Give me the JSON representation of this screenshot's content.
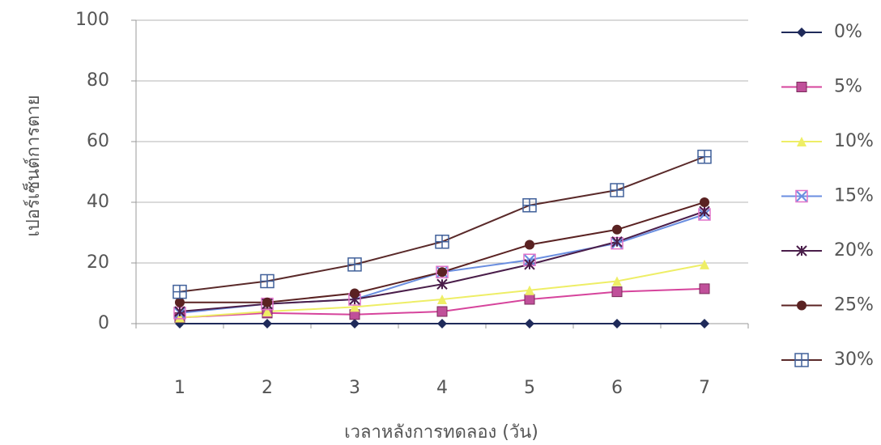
{
  "chart_data": {
    "type": "line",
    "x_label": "เวลาหลังการทดลอง (วัน)",
    "y_label": "เปอร์เซ็นต์การตาย",
    "categories": [
      "1",
      "2",
      "3",
      "4",
      "5",
      "6",
      "7"
    ],
    "ylim": [
      0,
      100
    ],
    "yticks": [
      0,
      20,
      40,
      60,
      80,
      100
    ],
    "grid": true,
    "legend": "right",
    "series": [
      {
        "name": "0%",
        "color": "#1f2a5a",
        "marker": "diamond",
        "marker_color": "#1f2a5a",
        "values": [
          0,
          0,
          0,
          0,
          0,
          0,
          0
        ]
      },
      {
        "name": "5%",
        "color": "#d6449c",
        "marker": "square",
        "marker_color": "#c0509a",
        "values": [
          2,
          3.5,
          3,
          4,
          8,
          10.5,
          11.5
        ]
      },
      {
        "name": "10%",
        "color": "#eeee66",
        "marker": "triangle",
        "marker_color": "#eeee66",
        "values": [
          2,
          4,
          5.5,
          8,
          11,
          14,
          19.5
        ]
      },
      {
        "name": "15%",
        "color": "#6a8ee0",
        "marker": "xbox",
        "marker_color": "#e070c8",
        "values": [
          3.5,
          6.5,
          8,
          17,
          21,
          26.5,
          36
        ]
      },
      {
        "name": "20%",
        "color": "#4a1e4a",
        "marker": "star",
        "marker_color": "#4a1e4a",
        "values": [
          4,
          6.5,
          8,
          13,
          19.5,
          27,
          37
        ]
      },
      {
        "name": "25%",
        "color": "#5a2222",
        "marker": "circle",
        "marker_color": "#5a2222",
        "values": [
          7,
          7,
          10,
          17,
          26,
          31,
          40
        ]
      },
      {
        "name": "30%",
        "color": "#5a2a2a",
        "marker": "plusbox",
        "marker_color": "#40609a",
        "values": [
          10.5,
          14,
          19.5,
          27,
          39,
          44,
          55
        ]
      }
    ]
  }
}
